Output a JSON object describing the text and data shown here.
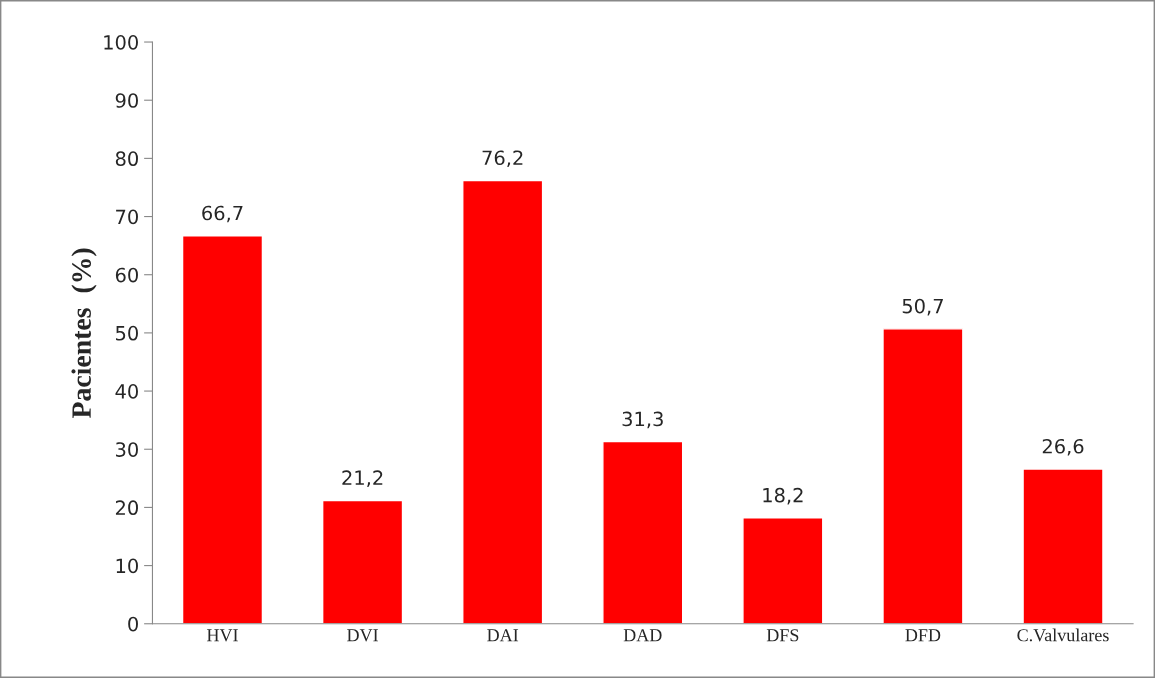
{
  "chart_data": {
    "type": "bar",
    "ylabel": "Pacientes  (%)",
    "categories": [
      "HVI",
      "DVI",
      "DAI",
      "DAD",
      "DFS",
      "DFD",
      "C.Valvulares"
    ],
    "values": [
      66.7,
      21.2,
      76.2,
      31.3,
      18.2,
      50.7,
      26.6
    ],
    "value_labels": [
      "66,7",
      "21,2",
      "76,2",
      "31,3",
      "18,2",
      "50,7",
      "26,6"
    ],
    "color": "#ff0000",
    "ylim": [
      0,
      100
    ],
    "yticks": [
      0,
      10,
      20,
      30,
      40,
      50,
      60,
      70,
      80,
      90,
      100
    ],
    "grid": false,
    "legend": false
  }
}
